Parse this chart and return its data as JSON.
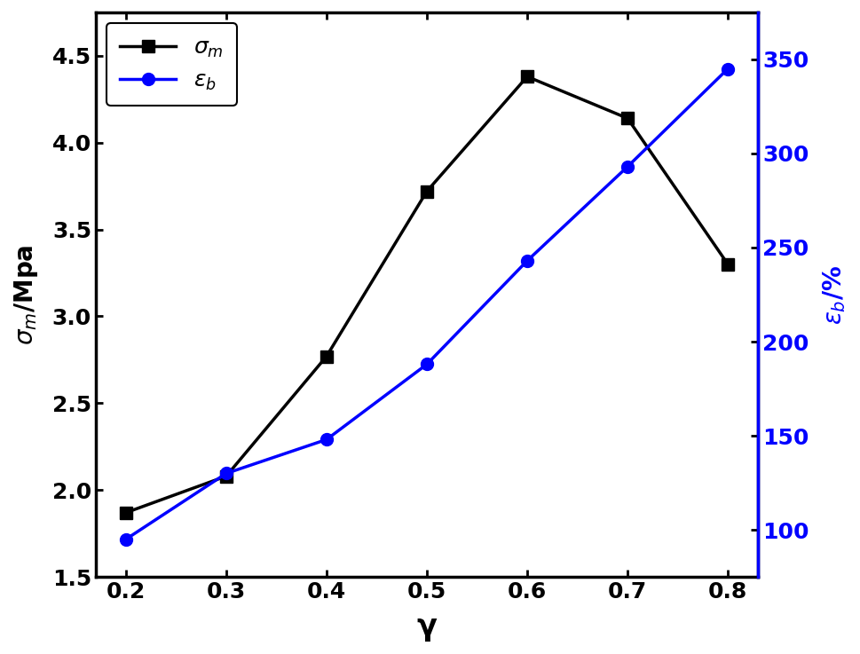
{
  "x": [
    0.2,
    0.3,
    0.4,
    0.5,
    0.6,
    0.7,
    0.8
  ],
  "sigma_m": [
    1.87,
    2.08,
    2.77,
    3.72,
    4.38,
    4.14,
    3.3
  ],
  "epsilon_b": [
    95,
    130,
    148,
    188,
    243,
    293,
    345
  ],
  "sigma_color": "#000000",
  "epsilon_color": "#0000ff",
  "xlabel": "γ",
  "ylim_left": [
    1.5,
    4.75
  ],
  "ylim_right": [
    75,
    375
  ],
  "yticks_left": [
    1.5,
    2.0,
    2.5,
    3.0,
    3.5,
    4.0,
    4.5
  ],
  "yticks_right": [
    100,
    150,
    200,
    250,
    300,
    350
  ],
  "xticks": [
    0.2,
    0.3,
    0.4,
    0.5,
    0.6,
    0.7,
    0.8
  ],
  "linewidth": 2.5,
  "markersize_square": 10,
  "markersize_circle": 10,
  "spine_linewidth": 2.5,
  "tick_labelsize": 18,
  "label_fontsize": 20,
  "legend_fontsize": 18
}
